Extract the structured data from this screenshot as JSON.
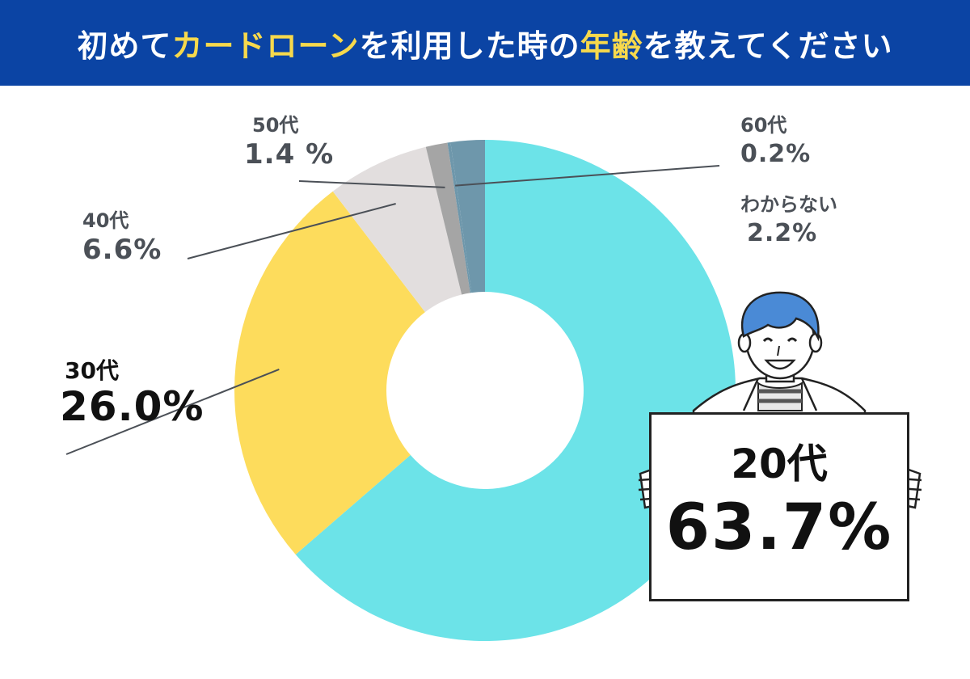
{
  "title": {
    "parts": [
      {
        "text": "初めて",
        "highlight": false
      },
      {
        "text": "カードローン",
        "highlight": true
      },
      {
        "text": "を利用した時の",
        "highlight": false
      },
      {
        "text": "年齢",
        "highlight": true
      },
      {
        "text": "を教えてください",
        "highlight": false
      }
    ]
  },
  "colors": {
    "banner": "#0b44a4",
    "title_text": "#ffffff",
    "title_highlight": "#f7d94c"
  },
  "chart_data": {
    "type": "pie",
    "style": "donut",
    "start": "top",
    "direction": "clockwise",
    "slices": [
      {
        "label": "20代",
        "value": 63.7,
        "display": "63.7%",
        "color": "#6ce3e8"
      },
      {
        "label": "30代",
        "value": 26.0,
        "display": "26.0%",
        "color": "#fddc5c"
      },
      {
        "label": "40代",
        "value": 6.6,
        "display": "6.6%",
        "color": "#e2dede"
      },
      {
        "label": "50代",
        "value": 1.4,
        "display": "1.4 %",
        "color": "#a5a5a5"
      },
      {
        "label": "60代",
        "value": 0.2,
        "display": "0.2%",
        "color": "#6e97ab"
      },
      {
        "label": "わからない",
        "value": 2.2,
        "display": "2.2%",
        "color": "#6e97ab"
      }
    ]
  },
  "illustration": {
    "icon": "smiling-person-icon",
    "hair_color": "#4a8ad6"
  }
}
